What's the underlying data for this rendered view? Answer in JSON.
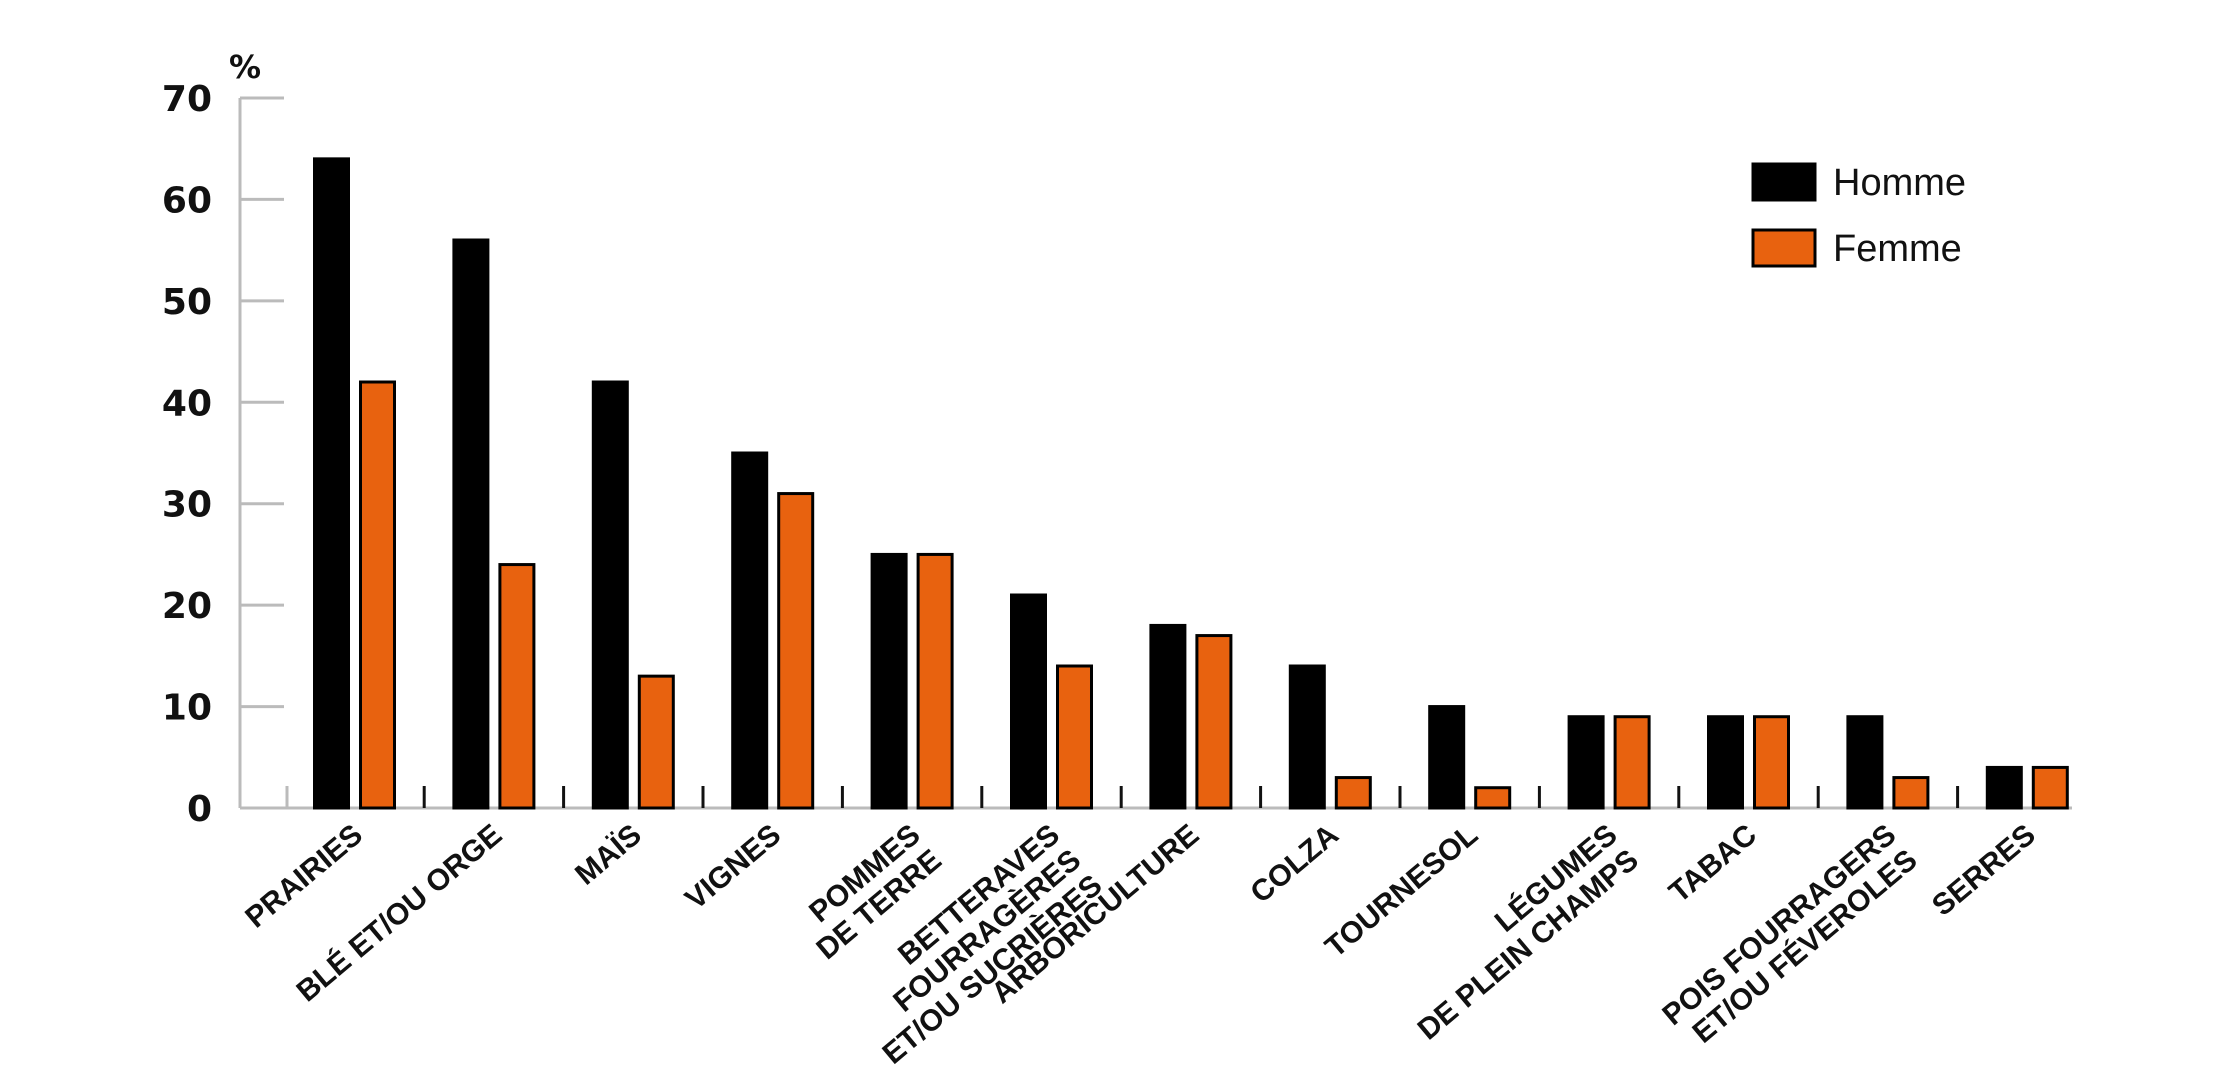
{
  "chart_data": {
    "type": "bar",
    "ylabel": "%",
    "ylim": [
      0,
      70
    ],
    "yticks": [
      0,
      10,
      20,
      30,
      40,
      50,
      60,
      70
    ],
    "categories": [
      [
        "Prairies"
      ],
      [
        "Blé et/ou orge"
      ],
      [
        "Maïs"
      ],
      [
        "Vignes"
      ],
      [
        "Pommes",
        "de terre"
      ],
      [
        "Betteraves",
        "fourragères",
        "et/ou sucrières"
      ],
      [
        "Arboriculture"
      ],
      [
        "Colza"
      ],
      [
        "Tournesol"
      ],
      [
        "Légumes",
        "de plein champs"
      ],
      [
        "Tabac"
      ],
      [
        "Pois fourragers",
        "et/ou féveroles"
      ],
      [
        "Serres"
      ]
    ],
    "series": [
      {
        "name": "Homme",
        "color": "#000000",
        "values": [
          64,
          56,
          42,
          35,
          25,
          21,
          18,
          14,
          10,
          9,
          9,
          9,
          4
        ]
      },
      {
        "name": "Femme",
        "color": "#e8620f",
        "values": [
          42,
          24,
          13,
          31,
          25,
          14,
          17,
          3,
          2,
          9,
          9,
          3,
          4
        ]
      }
    ],
    "legend_position": "top-right",
    "grid": false
  }
}
